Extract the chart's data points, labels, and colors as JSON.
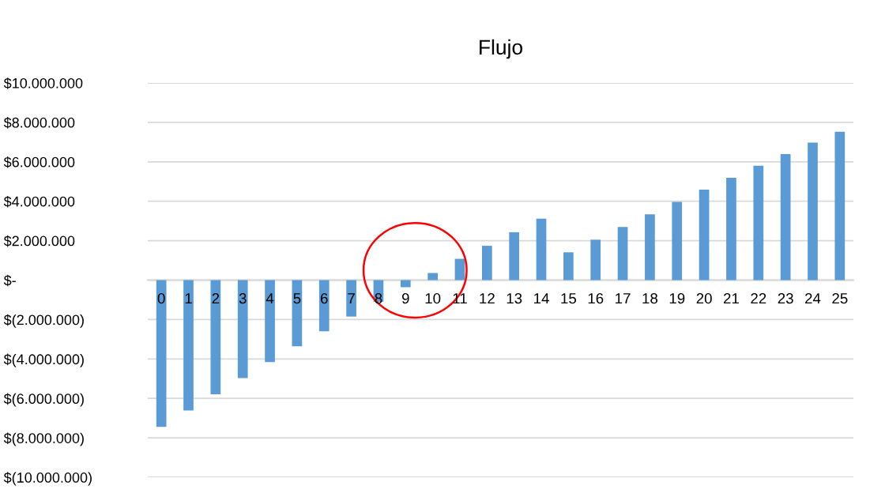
{
  "chart_data": {
    "type": "bar",
    "title": "Flujo",
    "categories": [
      "0",
      "1",
      "2",
      "3",
      "4",
      "5",
      "6",
      "7",
      "8",
      "9",
      "10",
      "11",
      "12",
      "13",
      "14",
      "15",
      "16",
      "17",
      "18",
      "19",
      "20",
      "21",
      "22",
      "23",
      "24",
      "25"
    ],
    "values": [
      -7440000,
      -6610000,
      -5790000,
      -4970000,
      -4160000,
      -3360000,
      -2600000,
      -1850000,
      -1100000,
      -360000,
      360000,
      1080000,
      1740000,
      2430000,
      3120000,
      1410000,
      2050000,
      2700000,
      3340000,
      3970000,
      4590000,
      5190000,
      5800000,
      6390000,
      6970000,
      7530000
    ],
    "color": "#5b9bd5",
    "ylim": [
      -10000000,
      10000000
    ],
    "yticks": [
      {
        "value": -10000000,
        "label": "$(10.000.000)"
      },
      {
        "value": -8000000,
        "label": "$(8.000.000)"
      },
      {
        "value": -6000000,
        "label": "$(6.000.000)"
      },
      {
        "value": -4000000,
        "label": "$(4.000.000)"
      },
      {
        "value": -2000000,
        "label": "$(2.000.000)"
      },
      {
        "value": 0,
        "label": "$-"
      },
      {
        "value": 2000000,
        "label": "$2.000.000"
      },
      {
        "value": 4000000,
        "label": "$4.000.000"
      },
      {
        "value": 6000000,
        "label": "$6.000.000"
      },
      {
        "value": 8000000,
        "label": "$8.000.000"
      },
      {
        "value": 10000000,
        "label": "$10.000.000"
      }
    ],
    "grid": "y"
  }
}
